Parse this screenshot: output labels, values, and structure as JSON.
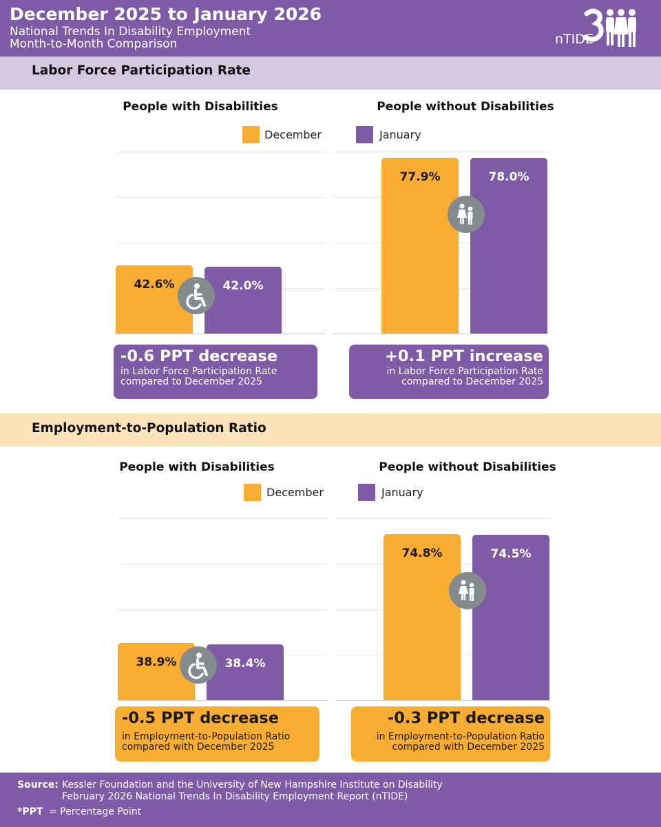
{
  "header": {
    "title": "December 2025 to January 2026",
    "subtitle_line1": "National Trends In Disability Employment",
    "subtitle_line2": "Month-to-Month Comparison",
    "logo_text": "nTIDE"
  },
  "legend": {
    "december": "December",
    "january": "January"
  },
  "colors": {
    "purple": "#7f5aa6",
    "orange": "#f9ae33",
    "icon_gray": "#838b8f"
  },
  "sections": {
    "lfpr": {
      "title": "Labor Force Participation Rate",
      "panel_with": "People with Disabilities",
      "panel_without": "People without Disabilities",
      "callout_with": {
        "headline": "-0.6 PPT  decrease",
        "line1": "in Labor Force Participation Rate",
        "line2": "compared to December 2025"
      },
      "callout_without": {
        "headline": "+0.1 PPT  increase",
        "line1": "in Labor Force Participation Rate",
        "line2": "compared to December 2025"
      }
    },
    "epr": {
      "title": "Employment-to-Population Ratio",
      "panel_with": "People with Disabilities",
      "panel_without": "People without Disabilities",
      "callout_with": {
        "headline": "-0.5 PPT  decrease",
        "line1": "in Employment-to-Population Ratio",
        "line2": "compared with December 2025"
      },
      "callout_without": {
        "headline": "-0.3 PPT  decrease",
        "line1": "in Employment-to-Population Ratio",
        "line2": "compared with December 2025"
      }
    }
  },
  "chart_data": [
    {
      "type": "bar",
      "title": "Labor Force Participation Rate - People with Disabilities",
      "categories": [
        "December",
        "January"
      ],
      "values": [
        42.6,
        42.0
      ],
      "labels": [
        "42.6%",
        "42.0%"
      ],
      "ylim": [
        20,
        80
      ],
      "grid": true
    },
    {
      "type": "bar",
      "title": "Labor Force Participation Rate - People without Disabilities",
      "categories": [
        "December",
        "January"
      ],
      "values": [
        77.9,
        78.0
      ],
      "labels": [
        "77.9%",
        "78.0%"
      ],
      "ylim": [
        20,
        80
      ],
      "grid": true
    },
    {
      "type": "bar",
      "title": "Employment-to-Population Ratio - People with Disabilities",
      "categories": [
        "December",
        "January"
      ],
      "values": [
        38.9,
        38.4
      ],
      "labels": [
        "38.9%",
        "38.4%"
      ],
      "ylim": [
        20,
        80
      ],
      "grid": true
    },
    {
      "type": "bar",
      "title": "Employment-to-Population Ratio - People without Disabilities",
      "categories": [
        "December",
        "January"
      ],
      "values": [
        74.8,
        74.5
      ],
      "labels": [
        "74.8%",
        "74.5%"
      ],
      "ylim": [
        20,
        80
      ],
      "grid": true
    }
  ],
  "footer": {
    "source_label": "Source:",
    "source_line1": "Kessler Foundation and the University of New Hampshire Institute on Disability",
    "source_line2": "February 2026 National Trends In Disability Employment Report (nTIDE)",
    "ppt_label": "*PPT",
    "ppt_definition": "= Percentage Point"
  }
}
